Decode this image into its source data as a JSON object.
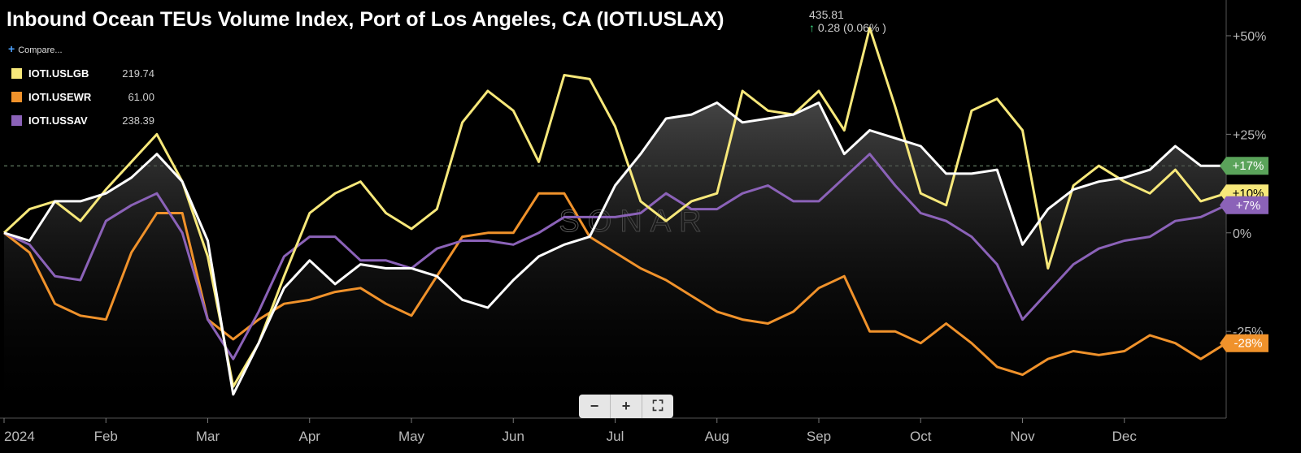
{
  "header": {
    "title": "Inbound Ocean TEUs Volume Index, Port of Los Angeles, CA (IOTI.USLAX)",
    "last_value": "435.81",
    "change": "0.28 (0.06% )",
    "compare_label": "Compare..."
  },
  "legend": [
    {
      "name": "IOTI.USLGB",
      "value": "219.74",
      "color": "#f7e87a"
    },
    {
      "name": "IOTI.USEWR",
      "value": "61.00",
      "color": "#f0922b"
    },
    {
      "name": "IOTI.USSAV",
      "value": "238.39",
      "color": "#8b62b8"
    }
  ],
  "watermark": "SONAR",
  "zoom_controls": {
    "minus": "−",
    "plus": "+",
    "fullscreen": "⛶"
  },
  "chart_data": {
    "type": "line",
    "x_ticks": [
      "2024",
      "Feb",
      "Mar",
      "Apr",
      "May",
      "Jun",
      "Jul",
      "Aug",
      "Sep",
      "Oct",
      "Nov",
      "Dec"
    ],
    "y_ticks": [
      "+50%",
      "+25%",
      "0%",
      "-25%"
    ],
    "y_tick_values": [
      50,
      25,
      0,
      -25
    ],
    "ylim": [
      -47,
      57
    ],
    "x_domain_months": [
      0,
      12
    ],
    "reference_line": 17,
    "x": [
      0,
      0.25,
      0.5,
      0.75,
      1,
      1.25,
      1.5,
      1.75,
      2,
      2.25,
      2.5,
      2.75,
      3,
      3.25,
      3.5,
      3.75,
      4,
      4.25,
      4.5,
      4.75,
      5,
      5.25,
      5.5,
      5.75,
      6,
      6.25,
      6.5,
      6.75,
      7,
      7.25,
      7.5,
      7.75,
      8,
      8.25,
      8.5,
      8.75,
      9,
      9.25,
      9.5,
      9.75,
      10,
      10.25,
      10.5,
      10.75,
      11,
      11.25,
      11.5,
      11.75,
      12
    ],
    "series": [
      {
        "name": "IOTI.USLAX",
        "color": "#ffffff",
        "badge": "+17%",
        "badge_color": "#5aa35a",
        "values": [
          0,
          -2,
          8,
          8,
          10,
          14,
          20,
          13,
          -2,
          -41,
          -28,
          -14,
          -7,
          -13,
          -8,
          -9,
          -9,
          -11,
          -17,
          -19,
          -12,
          -6,
          -3,
          -1,
          12,
          20,
          29,
          30,
          33,
          28,
          29,
          30,
          33,
          20,
          26,
          24,
          22,
          15,
          15,
          16,
          -3,
          6,
          11,
          13,
          14,
          16,
          22,
          17,
          17
        ]
      },
      {
        "name": "IOTI.USLGB",
        "color": "#f7e87a",
        "badge": "+10%",
        "badge_color": "#f7e87a",
        "values": [
          0,
          6,
          8,
          3,
          11,
          18,
          25,
          13,
          -6,
          -39,
          -28,
          -11,
          5,
          10,
          13,
          5,
          1,
          6,
          28,
          36,
          31,
          18,
          40,
          39,
          27,
          8,
          3,
          8,
          10,
          36,
          31,
          30,
          36,
          26,
          52,
          32,
          10,
          7,
          31,
          34,
          26,
          -9,
          12,
          17,
          13,
          10,
          16,
          8,
          10
        ]
      },
      {
        "name": "IOTI.USEWR",
        "color": "#f0922b",
        "badge": "-28%",
        "badge_color": "#f0922b",
        "values": [
          0,
          -5,
          -18,
          -21,
          -22,
          -5,
          5,
          5,
          -22,
          -27,
          -22,
          -18,
          -17,
          -15,
          -14,
          -18,
          -21,
          -11,
          -1,
          0,
          0,
          10,
          10,
          -1,
          -5,
          -9,
          -12,
          -16,
          -20,
          -22,
          -23,
          -20,
          -14,
          -11,
          -25,
          -25,
          -28,
          -23,
          -28,
          -34,
          -36,
          -32,
          -30,
          -31,
          -30,
          -26,
          -28,
          -32,
          -28
        ]
      },
      {
        "name": "IOTI.USSAV",
        "color": "#8b62b8",
        "badge": "+7%",
        "badge_color": "#8b62b8",
        "values": [
          0,
          -3,
          -11,
          -12,
          3,
          7,
          10,
          0,
          -22,
          -32,
          -20,
          -6,
          -1,
          -1,
          -7,
          -7,
          -9,
          -4,
          -2,
          -2,
          -3,
          0,
          4,
          4,
          4,
          5,
          10,
          6,
          6,
          10,
          12,
          8,
          8,
          14,
          20,
          12,
          5,
          3,
          -1,
          -8,
          -22,
          -15,
          -8,
          -4,
          -2,
          -1,
          3,
          4,
          7
        ]
      }
    ]
  }
}
